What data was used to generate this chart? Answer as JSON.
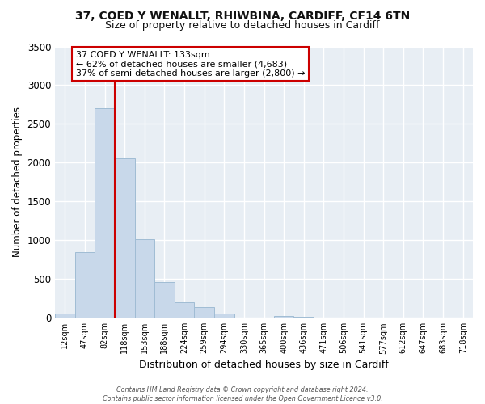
{
  "title_line1": "37, COED Y WENALLT, RHIWBINA, CARDIFF, CF14 6TN",
  "title_line2": "Size of property relative to detached houses in Cardiff",
  "xlabel": "Distribution of detached houses by size in Cardiff",
  "ylabel": "Number of detached properties",
  "bar_labels": [
    "12sqm",
    "47sqm",
    "82sqm",
    "118sqm",
    "153sqm",
    "188sqm",
    "224sqm",
    "259sqm",
    "294sqm",
    "330sqm",
    "365sqm",
    "400sqm",
    "436sqm",
    "471sqm",
    "506sqm",
    "541sqm",
    "577sqm",
    "612sqm",
    "647sqm",
    "683sqm",
    "718sqm"
  ],
  "bar_heights": [
    50,
    850,
    2700,
    2060,
    1010,
    460,
    205,
    140,
    55,
    0,
    0,
    25,
    15,
    0,
    0,
    0,
    0,
    0,
    0,
    0,
    0
  ],
  "bar_color": "#c8d8ea",
  "bar_edgecolor": "#a0bcd4",
  "ylim": [
    0,
    3500
  ],
  "yticks": [
    0,
    500,
    1000,
    1500,
    2000,
    2500,
    3000,
    3500
  ],
  "property_line_x": 3.0,
  "property_line_color": "#cc0000",
  "annotation_title": "37 COED Y WENALLT: 133sqm",
  "annotation_line1": "← 62% of detached houses are smaller (4,683)",
  "annotation_line2": "37% of semi-detached houses are larger (2,800) →",
  "annotation_box_facecolor": "#ffffff",
  "annotation_box_edgecolor": "#cc0000",
  "footer_line1": "Contains HM Land Registry data © Crown copyright and database right 2024.",
  "footer_line2": "Contains public sector information licensed under the Open Government Licence v3.0.",
  "plot_bg_color": "#e8eef4",
  "fig_bg_color": "#ffffff",
  "grid_color": "#ffffff"
}
